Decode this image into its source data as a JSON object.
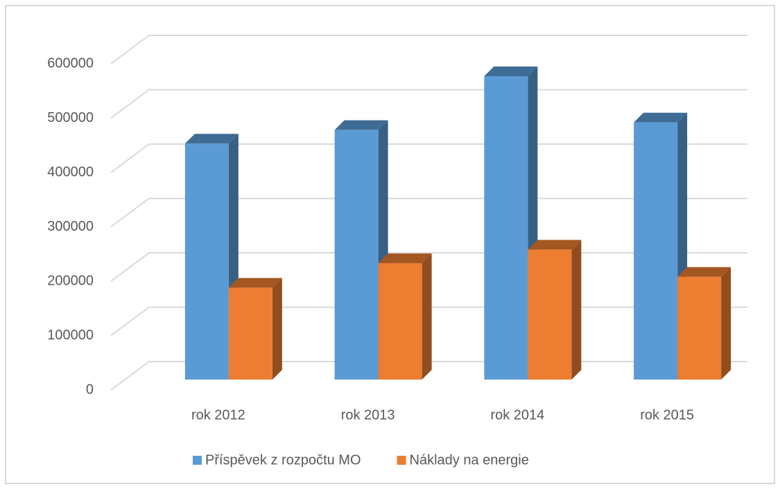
{
  "chart_data": {
    "type": "bar3d",
    "categories": [
      "rok 2012",
      "rok 2013",
      "rok 2014",
      "rok 2015"
    ],
    "series": [
      {
        "name": "Příspěvek z rozpočtu MO",
        "color": "#5b9bd5",
        "values": [
          434000,
          459000,
          558000,
          473000
        ]
      },
      {
        "name": "Náklady na energie",
        "color": "#ed7d31",
        "values": [
          169000,
          214000,
          239000,
          189000
        ]
      }
    ],
    "ylim": [
      0,
      600000
    ],
    "yticks": [
      0,
      100000,
      200000,
      300000,
      400000,
      500000,
      600000
    ],
    "grid": true,
    "legend": "bottom"
  }
}
